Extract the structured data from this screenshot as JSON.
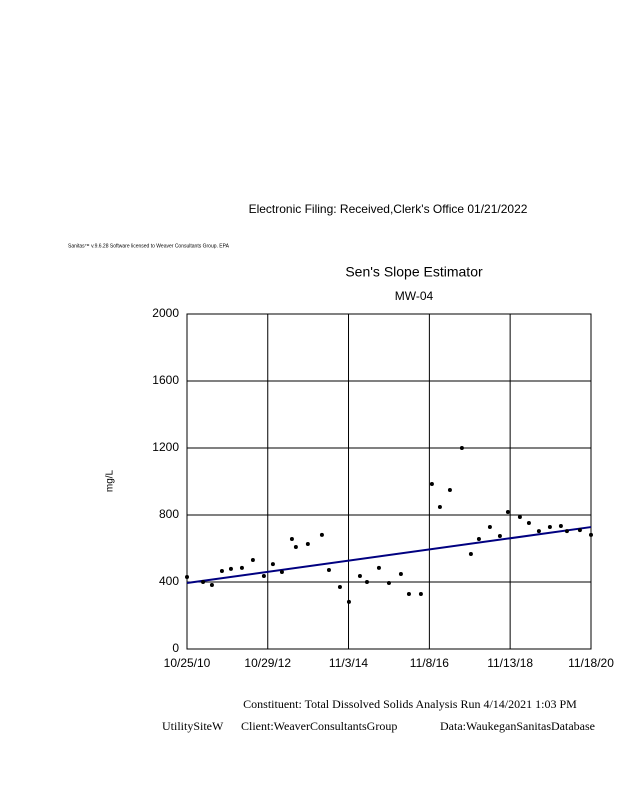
{
  "header": {
    "filing": "Electronic Filing: Received,Clerk's Office 01/21/2022",
    "license": "Sanitas™ v.9.6.28 Software licensed to Weaver Consultants Group. EPA"
  },
  "footer": {
    "line1": "Constituent: Total Dissolved Solids Analysis Run 4/14/2021 1:03 PM",
    "line2_left": "UtilitySiteW",
    "line2_mid": "Client:WeaverConsultantsGroup",
    "line2_right": "Data:WaukeganSanitasDatabase"
  },
  "chart_data": {
    "type": "scatter",
    "title": "Sen's Slope Estimator",
    "subtitle": "MW-04",
    "y_label": "mg/L",
    "xlim": [
      "2010-10-25",
      "2020-11-18"
    ],
    "xticks": [
      {
        "value": "2010-10-25",
        "label": "10/25/10"
      },
      {
        "value": "2012-10-29",
        "label": "10/29/12"
      },
      {
        "value": "2014-11-03",
        "label": "11/3/14"
      },
      {
        "value": "2016-11-08",
        "label": "11/8/16"
      },
      {
        "value": "2018-11-13",
        "label": "11/13/18"
      },
      {
        "value": "2020-11-18",
        "label": "11/18/20"
      }
    ],
    "ylim": [
      0,
      2000
    ],
    "yticks": [
      0,
      400,
      800,
      1200,
      1600,
      2000
    ],
    "grid": true,
    "series": [
      {
        "name": "MW-04",
        "color": "#000000",
        "x": [
          "2010-10-25",
          "2011-03-20",
          "2011-06-09",
          "2011-09-08",
          "2011-11-29",
          "2012-03-08",
          "2012-06-16",
          "2012-09-24",
          "2012-12-15",
          "2013-03-07",
          "2013-06-06",
          "2013-07-12",
          "2013-10-29",
          "2014-03-06",
          "2014-05-09",
          "2014-08-17",
          "2014-11-07",
          "2015-02-15",
          "2015-04-20",
          "2015-08-07",
          "2015-11-06",
          "2016-02-23",
          "2016-05-06",
          "2016-08-23",
          "2016-12-01",
          "2017-02-12",
          "2017-05-14",
          "2017-08-31",
          "2017-11-21",
          "2018-02-02",
          "2018-05-13",
          "2018-08-12",
          "2018-10-24",
          "2019-02-10",
          "2019-05-03",
          "2019-08-02",
          "2019-11-10",
          "2020-02-18",
          "2020-04-13",
          "2020-08-09",
          "2020-11-18"
        ],
        "values": [
          430,
          400,
          382,
          466,
          478,
          484,
          531,
          436,
          507,
          460,
          657,
          609,
          627,
          681,
          472,
          370,
          281,
          436,
          400,
          484,
          394,
          448,
          328,
          328,
          985,
          848,
          949,
          1200,
          567,
          657,
          728,
          675,
          818,
          788,
          752,
          704,
          728,
          734,
          704,
          710,
          681
        ]
      }
    ],
    "trend": {
      "color": "#000080",
      "x": [
        "2010-10-25",
        "2020-11-18"
      ],
      "values": [
        394,
        728
      ]
    }
  }
}
